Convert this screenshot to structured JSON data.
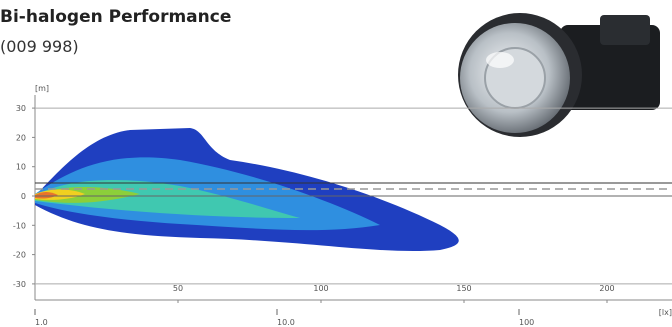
{
  "header": {
    "title": "Bi-halogen Performance",
    "subtitle": "(009 998)"
  },
  "chart": {
    "y_unit": "[m]",
    "yticks": [
      30,
      20,
      10,
      0,
      -10,
      -20,
      -30
    ],
    "xticks": [
      50,
      100,
      150,
      200
    ],
    "colorbar_unit": "[lx]",
    "colorbar_ticks": [
      {
        "value": 1,
        "label": "1.0"
      },
      {
        "value": 10,
        "label": "10.0"
      },
      100
    ]
  }
}
